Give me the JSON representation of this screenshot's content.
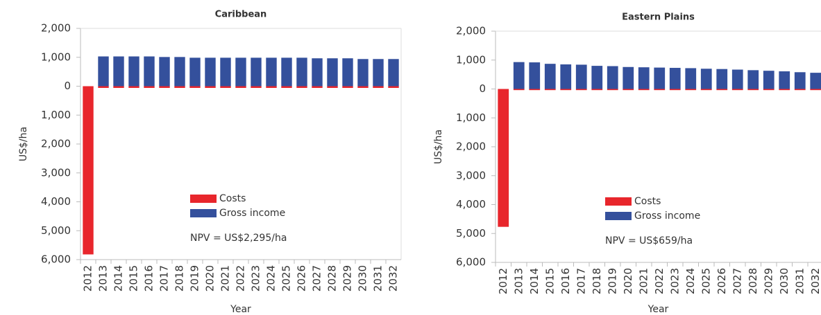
{
  "chart_data": [
    {
      "type": "bar",
      "title": "Caribbean",
      "x_label": "Year",
      "y_label": "US$/ha",
      "annotation": "NPV = US$2,295/ha",
      "categories": [
        "2012",
        "2013",
        "2014",
        "2015",
        "2016",
        "2017",
        "2018",
        "2019",
        "2020",
        "2021",
        "2022",
        "2023",
        "2024",
        "2025",
        "2026",
        "2027",
        "2028",
        "2029",
        "2030",
        "2031",
        "2032"
      ],
      "series": [
        {
          "name": "Costs",
          "color": "#e8262c",
          "values": [
            -5820,
            -60,
            -60,
            -60,
            -60,
            -60,
            -60,
            -60,
            -60,
            -60,
            -60,
            -60,
            -60,
            -60,
            -60,
            -60,
            -60,
            -60,
            -60,
            -60,
            -60
          ]
        },
        {
          "name": "Gross income",
          "color": "#34509c",
          "values": [
            0,
            1030,
            1030,
            1030,
            1030,
            1010,
            1010,
            985,
            985,
            985,
            985,
            985,
            985,
            985,
            985,
            965,
            965,
            965,
            940,
            940,
            940
          ]
        }
      ],
      "ylim": [
        -6000,
        2000
      ],
      "yticks": [
        {
          "value": -6000,
          "label": "6,000"
        },
        {
          "value": -5000,
          "label": "5,000"
        },
        {
          "value": -4000,
          "label": "4,000"
        },
        {
          "value": -3000,
          "label": "3,000"
        },
        {
          "value": -2000,
          "label": "2,000"
        },
        {
          "value": -1000,
          "label": "1,000"
        },
        0,
        {
          "value": 1000,
          "label": "1,000"
        },
        {
          "value": 2000,
          "label": "2,000"
        }
      ]
    },
    {
      "type": "bar",
      "title": "Eastern Plains",
      "x_label": "Year",
      "y_label": "US$/ha",
      "annotation": "NPV = US$659/ha",
      "categories": [
        "2012",
        "2013",
        "2014",
        "2015",
        "2016",
        "2017",
        "2018",
        "2019",
        "2020",
        "2021",
        "2022",
        "2023",
        "2024",
        "2025",
        "2026",
        "2027",
        "2028",
        "2029",
        "2030",
        "2031",
        "2032"
      ],
      "series": [
        {
          "name": "Costs",
          "color": "#e8262c",
          "values": [
            -4770,
            -40,
            -40,
            -40,
            -40,
            -40,
            -40,
            -40,
            -40,
            -40,
            -40,
            -40,
            -40,
            -40,
            -40,
            -40,
            -40,
            -40,
            -40,
            -40,
            -40
          ]
        },
        {
          "name": "Gross income",
          "color": "#34509c",
          "values": [
            0,
            930,
            920,
            870,
            850,
            840,
            800,
            790,
            760,
            750,
            740,
            730,
            720,
            700,
            690,
            670,
            650,
            630,
            610,
            580,
            560
          ]
        }
      ],
      "ylim": [
        -6000,
        2000
      ],
      "yticks": [
        {
          "value": -6000,
          "label": "6,000"
        },
        {
          "value": -5000,
          "label": "5,000"
        },
        {
          "value": -4000,
          "label": "4,000"
        },
        {
          "value": -3000,
          "label": "3,000"
        },
        {
          "value": -2000,
          "label": "2,000"
        },
        {
          "value": -1000,
          "label": "1,000"
        },
        0,
        {
          "value": 1000,
          "label": "1,000"
        },
        {
          "value": 2000,
          "label": "2,000"
        }
      ]
    }
  ]
}
